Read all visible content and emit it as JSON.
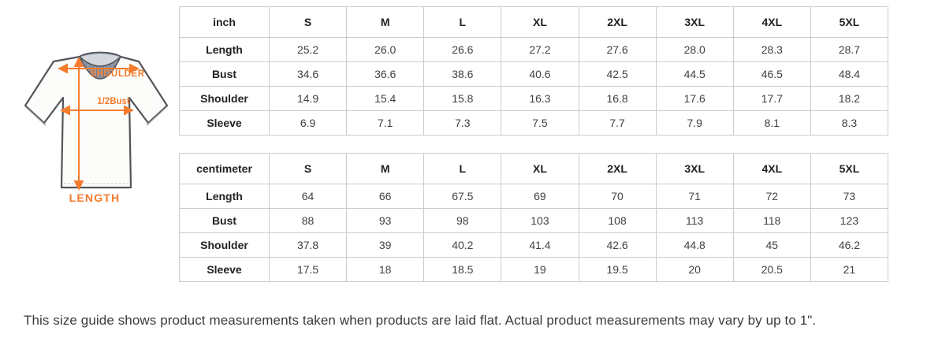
{
  "colors": {
    "accent": "#f57b2d",
    "collar": "#939cac",
    "collar_rib": "#6f7889",
    "collar_inner": "#d4d7dd",
    "outline": "#53555a",
    "table_border": "#cccccc"
  },
  "shirt": {
    "labels": {
      "shoulder": "SHOULDER",
      "half_bust": "1/2Bust",
      "length": "LENGTH"
    }
  },
  "tables": [
    {
      "unit_label": "inch",
      "sizes": [
        "S",
        "M",
        "L",
        "XL",
        "2XL",
        "3XL",
        "4XL",
        "5XL"
      ],
      "rows": [
        {
          "label": "Length",
          "values": [
            "25.2",
            "26.0",
            "26.6",
            "27.2",
            "27.6",
            "28.0",
            "28.3",
            "28.7"
          ]
        },
        {
          "label": "Bust",
          "values": [
            "34.6",
            "36.6",
            "38.6",
            "40.6",
            "42.5",
            "44.5",
            "46.5",
            "48.4"
          ]
        },
        {
          "label": "Shoulder",
          "values": [
            "14.9",
            "15.4",
            "15.8",
            "16.3",
            "16.8",
            "17.6",
            "17.7",
            "18.2"
          ]
        },
        {
          "label": "Sleeve",
          "values": [
            "6.9",
            "7.1",
            "7.3",
            "7.5",
            "7.7",
            "7.9",
            "8.1",
            "8.3"
          ]
        }
      ]
    },
    {
      "unit_label": "centimeter",
      "sizes": [
        "S",
        "M",
        "L",
        "XL",
        "2XL",
        "3XL",
        "4XL",
        "5XL"
      ],
      "rows": [
        {
          "label": "Length",
          "values": [
            "64",
            "66",
            "67.5",
            "69",
            "70",
            "71",
            "72",
            "73"
          ]
        },
        {
          "label": "Bust",
          "values": [
            "88",
            "93",
            "98",
            "103",
            "108",
            "113",
            "118",
            "123"
          ]
        },
        {
          "label": "Shoulder",
          "values": [
            "37.8",
            "39",
            "40.2",
            "41.4",
            "42.6",
            "44.8",
            "45",
            "46.2"
          ]
        },
        {
          "label": "Sleeve",
          "values": [
            "17.5",
            "18",
            "18.5",
            "19",
            "19.5",
            "20",
            "20.5",
            "21"
          ]
        }
      ]
    }
  ],
  "note": {
    "text": "This size guide shows product measurements taken when products are laid flat. Actual product measurements may vary by up to 1\"."
  }
}
